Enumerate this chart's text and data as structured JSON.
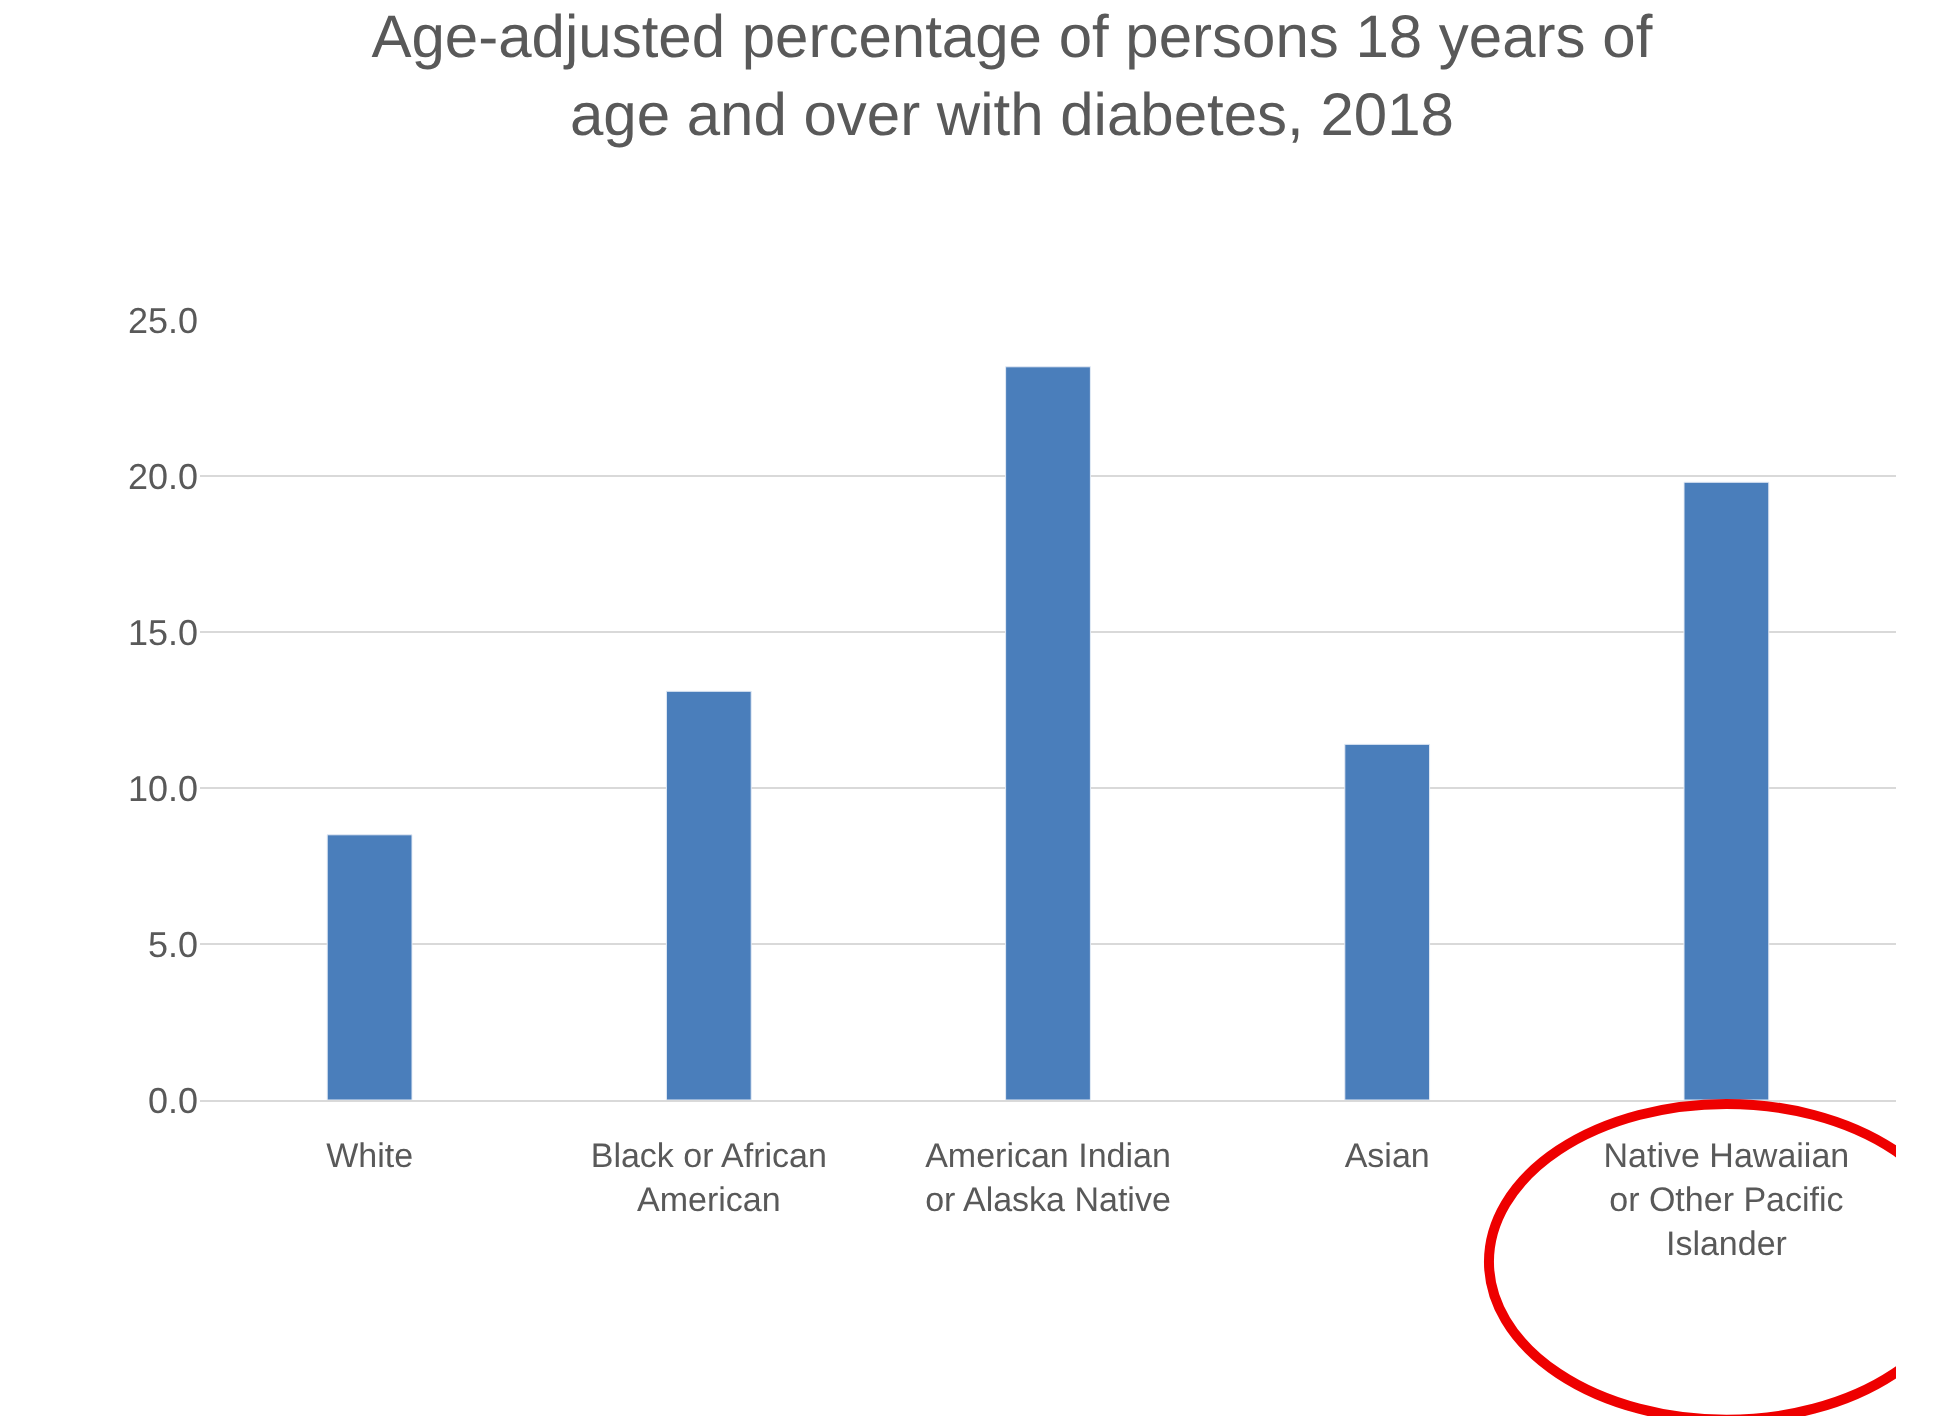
{
  "chart_data": {
    "type": "bar",
    "title": "Age-adjusted percentage of persons 18 years of age and over with diabetes, 2018",
    "categories": [
      "White",
      "Black or African American",
      "American Indian or Alaska Native",
      "Asian",
      "Native Hawaiian or Other Pacific Islander"
    ],
    "values": [
      8.5,
      13.1,
      23.5,
      11.4,
      19.8
    ],
    "color": "#4a7ebb",
    "ylim": [
      0,
      25
    ],
    "yticks": [
      {
        "value": 0,
        "label": "0.0"
      },
      {
        "value": 5,
        "label": "5.0"
      },
      {
        "value": 10,
        "label": "10.0"
      },
      {
        "value": 15,
        "label": "15.0"
      },
      {
        "value": 20,
        "label": "20.0"
      },
      {
        "value": 25,
        "label": "25.0"
      }
    ],
    "grid": "y"
  }
}
